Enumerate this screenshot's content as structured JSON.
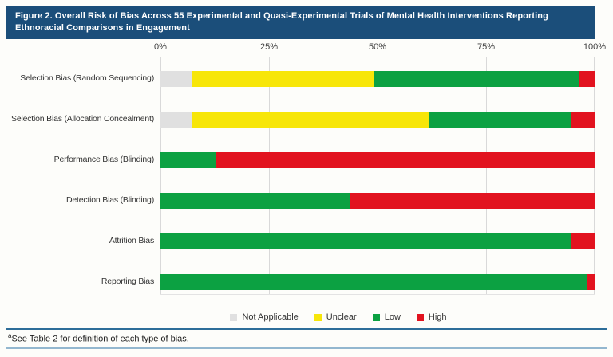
{
  "figure": {
    "title": "Figure 2. Overall Risk of Bias Across 55 Experimental and Quasi-Experimental Trials of Mental Health Interventions Reporting Ethnoracial Comparisons in Engagement",
    "footnote_marker": "a",
    "footnote_text": "See Table 2 for definition of each type of bias.",
    "title_bar_color": "#1b4e7a",
    "divider_top_color": "#2d6d99",
    "divider_bottom_color": "#93b7cf"
  },
  "chart_data": {
    "type": "bar",
    "orientation": "horizontal",
    "stacked": true,
    "title": "Figure 2. Overall Risk of Bias Across 55 Experimental and Quasi-Experimental Trials of Mental Health Interventions Reporting Ethnoracial Comparisons in Engagement",
    "xlabel": "",
    "ylabel": "",
    "x_unit": "% of 55 trials",
    "xlim": [
      0,
      100
    ],
    "x_tick_labels": [
      "0%",
      "25%",
      "50%",
      "75%",
      "100%"
    ],
    "x_tick_values": [
      0,
      25,
      50,
      75,
      100
    ],
    "grid": "vertical",
    "legend_position": "bottom",
    "categories": [
      "Selection Bias (Random Sequencing)",
      "Selection Bias (Allocation Concealment)",
      "Performance Bias (Blinding)",
      "Detection Bias (Blinding)",
      "Attrition Bias",
      "Reporting Bias"
    ],
    "series": [
      {
        "name": "Not Applicable",
        "color": "#e0e0e0",
        "values": [
          7.3,
          7.3,
          0,
          0,
          0,
          0
        ]
      },
      {
        "name": "Unclear",
        "color": "#f7e609",
        "values": [
          41.8,
          54.5,
          0,
          0,
          0,
          0
        ]
      },
      {
        "name": "Low",
        "color": "#0ca142",
        "values": [
          47.3,
          32.7,
          12.7,
          43.6,
          94.5,
          98.2
        ]
      },
      {
        "name": "High",
        "color": "#e2131f",
        "values": [
          3.6,
          5.5,
          87.3,
          56.4,
          5.5,
          1.8
        ]
      }
    ]
  }
}
